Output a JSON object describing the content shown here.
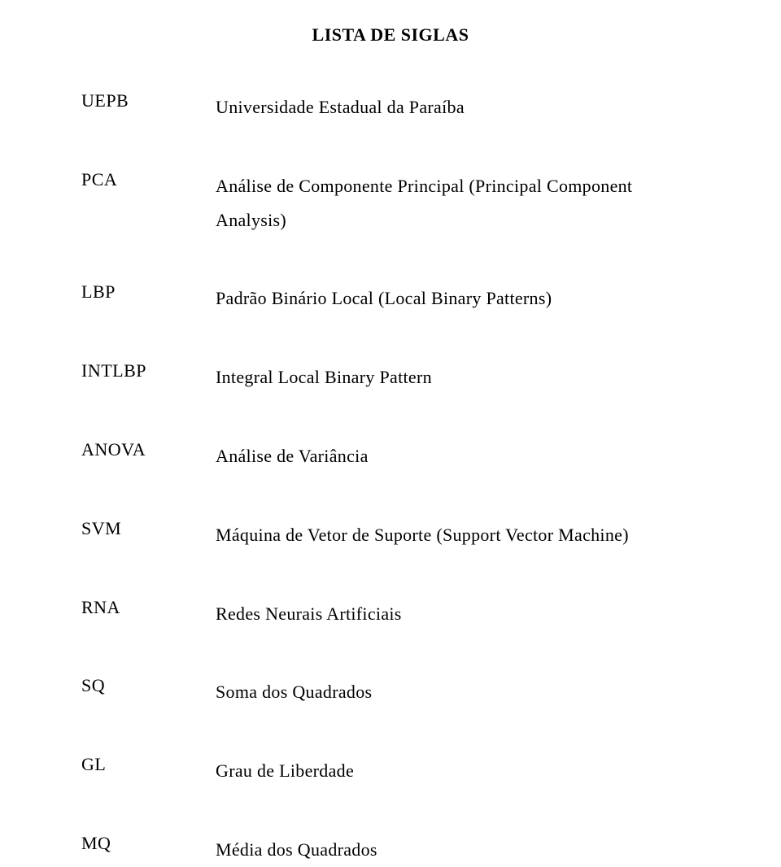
{
  "title": "LISTA DE SIGLAS",
  "entries": [
    {
      "acronym": "UEPB",
      "definition": "Universidade Estadual da Paraíba"
    },
    {
      "acronym": "PCA",
      "definition": "Análise de Componente Principal (Principal Component Analysis)"
    },
    {
      "acronym": "LBP",
      "definition": "Padrão Binário Local (Local Binary Patterns)"
    },
    {
      "acronym": "INTLBP",
      "definition": "Integral Local Binary Pattern"
    },
    {
      "acronym": "ANOVA",
      "definition": "Análise de Variância"
    },
    {
      "acronym": "SVM",
      "definition": "Máquina de Vetor de Suporte (Support Vector Machine)"
    },
    {
      "acronym": "RNA",
      "definition": "Redes Neurais Artificiais"
    },
    {
      "acronym": "SQ",
      "definition": "Soma dos Quadrados"
    },
    {
      "acronym": "GL",
      "definition": "Grau de Liberdade"
    },
    {
      "acronym": "MQ",
      "definition": "Média dos Quadrados"
    }
  ]
}
